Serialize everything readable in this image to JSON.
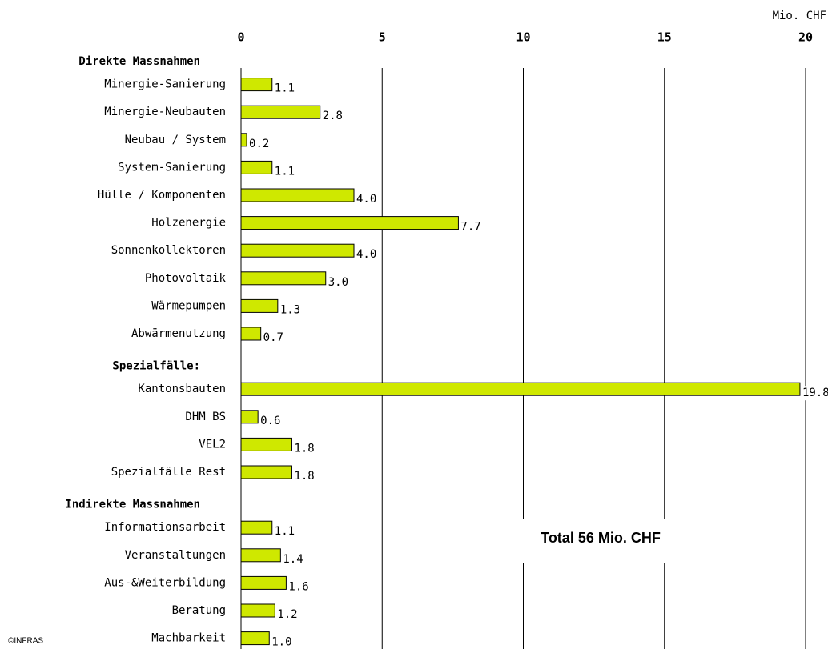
{
  "chart_data": {
    "type": "bar",
    "unit_label": "Mio. CHF",
    "annotation": "Total 56 Mio. CHF",
    "credit": "©INFRAS",
    "color": "#cfe800",
    "xlim": [
      0,
      20
    ],
    "xticks": [
      0,
      5,
      10,
      15,
      20
    ],
    "grid": true,
    "groups": [
      {
        "label": "Direkte Massnahmen",
        "categories": [
          "Minergie-Sanierung",
          "Minergie-Neubauten",
          "Neubau / System",
          "System-Sanierung",
          "Hülle / Komponenten",
          "Holzenergie",
          "Sonnenkollektoren",
          "Photovoltaik",
          "Wärmepumpen",
          "Abwärmenutzung"
        ],
        "values": [
          1.1,
          2.8,
          0.2,
          1.1,
          4.0,
          7.7,
          4.0,
          3.0,
          1.3,
          0.7
        ],
        "value_labels": [
          "1.1",
          "2.8",
          "0.2",
          "1.1",
          "4.0",
          "7.7",
          "4.0",
          "3.0",
          "1.3",
          "0.7"
        ]
      },
      {
        "label": "Spezialfälle:",
        "categories": [
          "Kantonsbauten",
          "DHM BS",
          "VEL2",
          "Spezialfälle Rest"
        ],
        "values": [
          19.8,
          0.6,
          1.8,
          1.8
        ],
        "value_labels": [
          "19.8",
          "0.6",
          "1.8",
          "1.8"
        ]
      },
      {
        "label": "Indirekte Massnahmen",
        "categories": [
          "Informationsarbeit",
          "Veranstaltungen",
          "Aus-&Weiterbildung",
          "Beratung",
          "Machbarkeit"
        ],
        "values": [
          1.1,
          1.4,
          1.6,
          1.2,
          1.0
        ],
        "value_labels": [
          "1.1",
          "1.4",
          "1.6",
          "1.2",
          "1.0"
        ]
      }
    ]
  }
}
